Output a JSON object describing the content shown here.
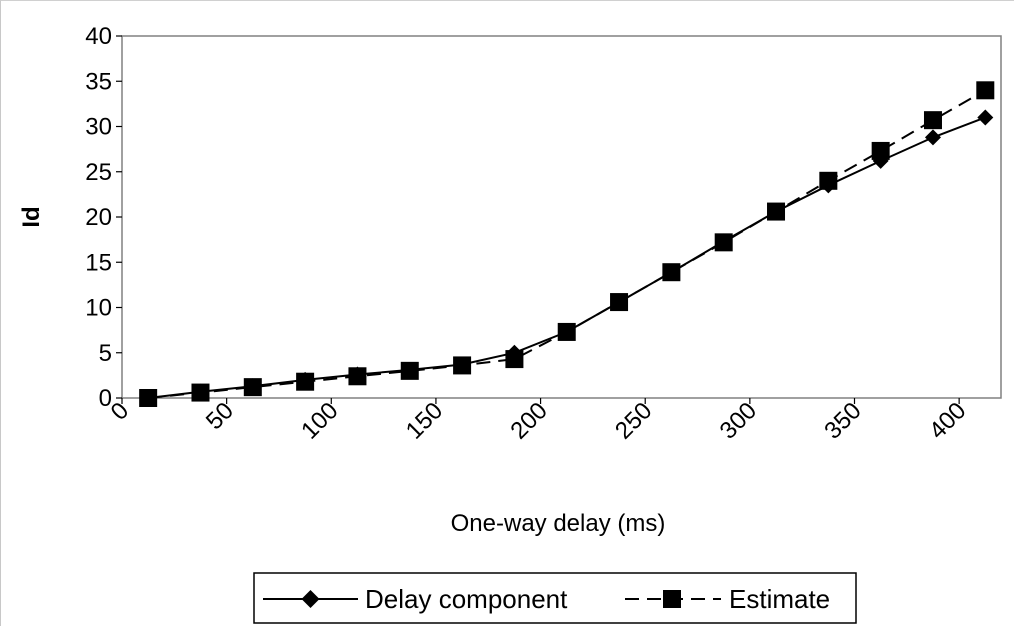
{
  "chart_data": {
    "type": "line",
    "xlabel": "One-way delay (ms)",
    "ylabel": "Id",
    "xlim": [
      0,
      420
    ],
    "ylim": [
      0,
      40
    ],
    "x_ticks": [
      "0",
      "50",
      "100",
      "150",
      "200",
      "250",
      "300",
      "350",
      "400"
    ],
    "y_ticks": [
      "0",
      "5",
      "10",
      "15",
      "20",
      "25",
      "30",
      "35",
      "40"
    ],
    "grid": false,
    "legend_position": "bottom",
    "series": [
      {
        "name": "Delay component",
        "marker": "diamond",
        "line_style": "solid",
        "color": "#000000",
        "x": [
          12.5,
          37.5,
          62.5,
          87.5,
          112.5,
          137.5,
          162.5,
          187.5,
          212.5,
          237.5,
          262.5,
          287.5,
          312.5,
          337.5,
          362.5,
          387.5,
          412.5
        ],
        "values": [
          0.0,
          0.7,
          1.3,
          2.0,
          2.6,
          3.1,
          3.7,
          5.0,
          7.3,
          10.6,
          13.9,
          17.3,
          20.6,
          23.5,
          26.2,
          28.8,
          31.0
        ]
      },
      {
        "name": "Estimate",
        "marker": "square",
        "line_style": "dashed",
        "color": "#000000",
        "x": [
          12.5,
          37.5,
          62.5,
          87.5,
          112.5,
          137.5,
          162.5,
          187.5,
          212.5,
          237.5,
          262.5,
          287.5,
          312.5,
          337.5,
          362.5,
          387.5,
          412.5
        ],
        "values": [
          0.0,
          0.6,
          1.2,
          1.8,
          2.4,
          3.0,
          3.6,
          4.3,
          7.3,
          10.6,
          13.9,
          17.2,
          20.6,
          24.0,
          27.3,
          30.7,
          34.0
        ]
      }
    ]
  }
}
